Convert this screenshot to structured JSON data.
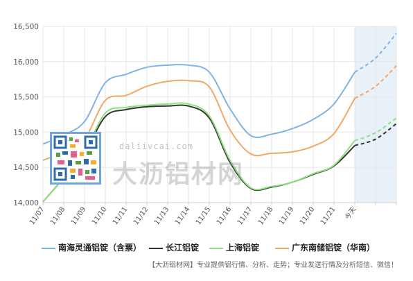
{
  "chart_data": {
    "type": "line",
    "categories": [
      "11/07",
      "11/08",
      "11/09",
      "11/10",
      "11/11",
      "11/12",
      "11/13",
      "11/14",
      "11/15",
      "11/16",
      "11/17",
      "11/18",
      "11/19",
      "11/20",
      "11/21",
      "今天",
      "",
      ""
    ],
    "ylim": [
      14000,
      16500
    ],
    "yticks": [
      "16,500",
      "16,000",
      "15,500",
      "15,000",
      "14,500",
      "14,000"
    ],
    "ytick_values": [
      16500,
      16000,
      15500,
      15000,
      14500,
      14000
    ],
    "grid": true,
    "legend_position": "bottom",
    "forecast_start_index": 15,
    "series": [
      {
        "name": "南海灵通铝锭（含票）",
        "color": "#7fb2e5",
        "values": [
          14830,
          14960,
          15150,
          15700,
          15820,
          15920,
          15950,
          15950,
          15850,
          15330,
          14950,
          14970,
          15050,
          15180,
          15400,
          15850,
          16050,
          16400
        ]
      },
      {
        "name": "长江铝锭",
        "color": "#333333",
        "values": [
          14010,
          14350,
          14700,
          15220,
          15320,
          15360,
          15370,
          15370,
          15200,
          14570,
          14200,
          14220,
          14290,
          14400,
          14520,
          14810,
          14900,
          15120
        ]
      },
      {
        "name": "上海铝锭",
        "color": "#8fe07e",
        "values": [
          14010,
          14350,
          14720,
          15270,
          15350,
          15380,
          15400,
          15400,
          15230,
          14600,
          14210,
          14230,
          14290,
          14410,
          14530,
          14880,
          14990,
          15200
        ]
      },
      {
        "name": "广东南储铝锭（华南）",
        "color": "#f0a865",
        "values": [
          14600,
          14720,
          14900,
          15450,
          15520,
          15650,
          15720,
          15730,
          15640,
          15030,
          14690,
          14700,
          14720,
          14800,
          14980,
          15480,
          15650,
          15940
        ]
      }
    ]
  },
  "watermark": {
    "brand": "大沥铝材网",
    "url": "daliivcai.com"
  },
  "legend": {
    "items": [
      "南海灵通铝锭（含票）",
      "长江铝锭",
      "上海铝锭",
      "广东南储铝锭（华南）"
    ]
  },
  "footer": {
    "text": "【大沥铝材网】专业提供铝行情、分析、走势；专业发送行情及分析短信、微信！"
  },
  "colors": {
    "forecast_band": "#e8f0f8",
    "grid": "#e6e6e6",
    "axis": "#cfcfcf"
  }
}
